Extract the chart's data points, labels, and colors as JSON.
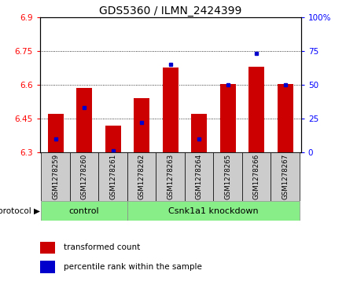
{
  "title": "GDS5360 / ILMN_2424399",
  "samples": [
    "GSM1278259",
    "GSM1278260",
    "GSM1278261",
    "GSM1278262",
    "GSM1278263",
    "GSM1278264",
    "GSM1278265",
    "GSM1278266",
    "GSM1278267"
  ],
  "red_values": [
    6.47,
    6.585,
    6.42,
    6.54,
    6.675,
    6.47,
    6.605,
    6.68,
    6.605
  ],
  "blue_percentile": [
    10,
    33,
    1,
    22,
    65,
    10,
    50,
    73,
    50
  ],
  "ylim_left": [
    6.3,
    6.9
  ],
  "ylim_right": [
    0,
    100
  ],
  "yticks_left": [
    6.3,
    6.45,
    6.6,
    6.75,
    6.9
  ],
  "yticks_right": [
    0,
    25,
    50,
    75,
    100
  ],
  "bar_bottom": 6.3,
  "bar_color": "#cc0000",
  "dot_color": "#0000cc",
  "control_label": "control",
  "knockdown_label": "Csnk1a1 knockdown",
  "protocol_label": "protocol",
  "legend1": "transformed count",
  "legend2": "percentile rank within the sample",
  "group_bg_color": "#88ee88",
  "sample_bg_color": "#cccccc",
  "title_fontsize": 10,
  "bar_width": 0.55
}
